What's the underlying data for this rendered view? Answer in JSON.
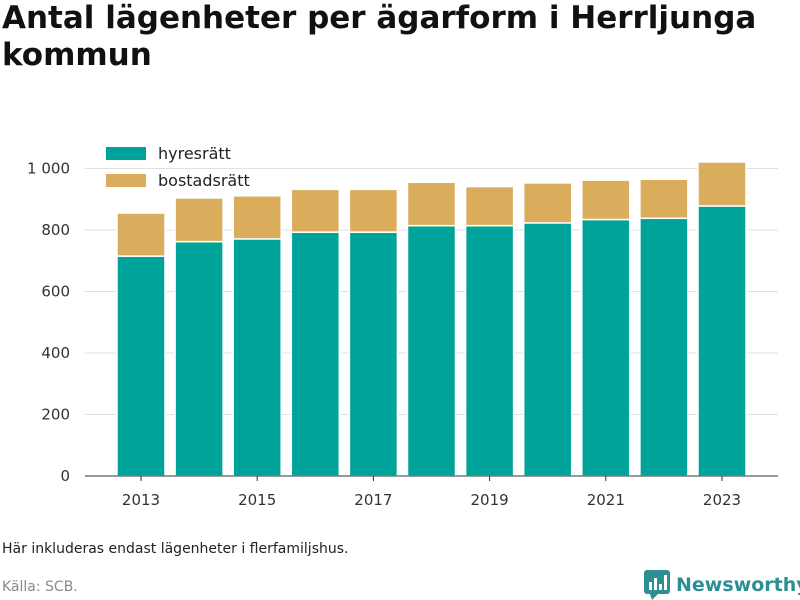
{
  "title": "Antal lägenheter per ägarform i Herrljunga kommun",
  "note": "Här inkluderas endast lägenheter i flerfamiljshus.",
  "source": "Källa: SCB.",
  "brand": {
    "name": "Newsworthy",
    "icon": "newsworthy-logo-icon",
    "color": "#2d8f93"
  },
  "chart_data": {
    "type": "bar",
    "stacked": true,
    "categories": [
      "2013",
      "2014",
      "2015",
      "2016",
      "2017",
      "2018",
      "2019",
      "2020",
      "2021",
      "2022",
      "2023"
    ],
    "x_tick_labels": [
      "2013",
      "2015",
      "2017",
      "2019",
      "2021",
      "2023"
    ],
    "series": [
      {
        "name": "hyresrätt",
        "color": "#00a39a",
        "values": [
          715,
          762,
          771,
          793,
          793,
          814,
          814,
          823,
          834,
          838,
          878
        ]
      },
      {
        "name": "bostadsrätt",
        "color": "#d9ad5b",
        "values": [
          140,
          142,
          140,
          139,
          139,
          141,
          127,
          130,
          128,
          127,
          143
        ]
      }
    ],
    "y_ticks": [
      0,
      200,
      400,
      600,
      800,
      1000
    ],
    "y_tick_labels": [
      "0",
      "200",
      "400",
      "600",
      "800",
      "1 000"
    ],
    "ylim": [
      0,
      1060
    ],
    "xlabel": "",
    "ylabel": "",
    "grid": true,
    "legend_position": "top-left"
  }
}
